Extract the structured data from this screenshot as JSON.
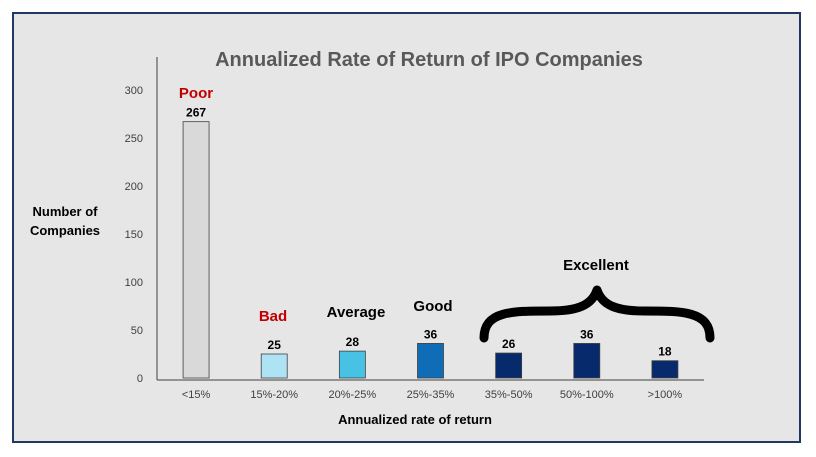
{
  "chart_data": {
    "type": "bar",
    "title": "Annualized Rate of Return of IPO Companies",
    "xlabel": "Annualized rate of return",
    "ylabel_lines": [
      "Number of",
      "Companies"
    ],
    "categories": [
      "<15%",
      "15%-20%",
      "20%-25%",
      "25%-35%",
      "35%-50%",
      "50%-100%",
      ">100%"
    ],
    "values": [
      267,
      25,
      28,
      36,
      26,
      36,
      18
    ],
    "data_labels": [
      "267",
      "25",
      "28",
      "36",
      "26",
      "36",
      "18"
    ],
    "ylim": [
      0,
      300
    ],
    "yticks": [
      "0",
      "50",
      "100",
      "150",
      "200",
      "250",
      "300"
    ],
    "bar_colors": [
      "#d9d9d9",
      "#aee3f5",
      "#47c2e5",
      "#0f6db8",
      "#062a6b",
      "#062a6b",
      "#062a6b"
    ],
    "annotations": {
      "poor": "Poor",
      "bad": "Bad",
      "average": "Average",
      "good": "Good",
      "excellent": "Excellent"
    },
    "annotation_colors": {
      "red": "#c00000",
      "black": "#000000"
    },
    "grid": false
  }
}
